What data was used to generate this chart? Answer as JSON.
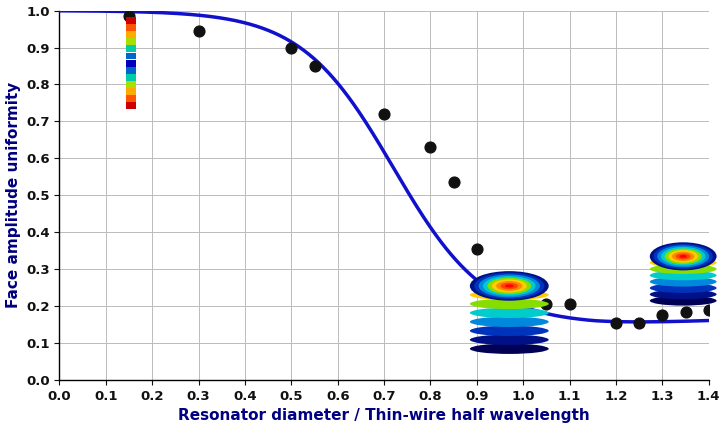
{
  "scatter_x": [
    0.15,
    0.3,
    0.5,
    0.55,
    0.7,
    0.8,
    0.85,
    0.9,
    1.05,
    1.1,
    1.2,
    1.25,
    1.3,
    1.35,
    1.4
  ],
  "scatter_y": [
    0.985,
    0.945,
    0.9,
    0.85,
    0.72,
    0.63,
    0.535,
    0.355,
    0.205,
    0.205,
    0.155,
    0.155,
    0.175,
    0.185,
    0.19
  ],
  "curve_color": "#1111cc",
  "scatter_color": "#111111",
  "background_color": "#ffffff",
  "grid_color": "#bbbbbb",
  "xlabel": "Resonator diameter / Thin-wire half wavelength",
  "ylabel": "Face amplitude uniformity",
  "xlim": [
    0.0,
    1.4
  ],
  "ylim": [
    0.0,
    1.0
  ],
  "xticks": [
    0.0,
    0.1,
    0.2,
    0.3,
    0.4,
    0.5,
    0.6,
    0.7,
    0.8,
    0.9,
    1.0,
    1.1,
    1.2,
    1.3,
    1.4
  ],
  "yticks": [
    0.0,
    0.1,
    0.2,
    0.3,
    0.4,
    0.5,
    0.6,
    0.7,
    0.8,
    0.9,
    1.0
  ],
  "label_color": "#000080",
  "label_fontsize": 11,
  "tick_fontsize": 9.5
}
